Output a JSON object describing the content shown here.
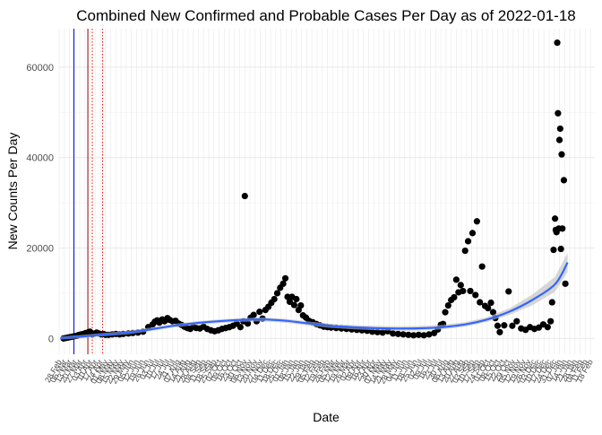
{
  "chart_data": {
    "type": "scatter",
    "title": "Combined New Confirmed and Probable Cases Per Day as of 2022-01-18",
    "xlabel": "Date",
    "ylabel": "New Counts Per Day",
    "x_domain": [
      "2020-02-28",
      "2022-02-24"
    ],
    "ylim": [
      -3500,
      68500
    ],
    "y_ticks": [
      0,
      20000,
      40000,
      60000
    ],
    "y_tick_labels": [
      "0",
      "20000",
      "40000",
      "60000"
    ],
    "grid": true,
    "vertical_lines": [
      {
        "date": "2020-03-19",
        "color": "#0000ff",
        "style": "solid"
      },
      {
        "date": "2020-04-07",
        "color": "#8b0000",
        "style": "solid"
      },
      {
        "date": "2020-04-13",
        "color": "#ff0000",
        "style": "dotted"
      },
      {
        "date": "2020-04-27",
        "color": "#ff0000",
        "style": "dotted"
      }
    ],
    "smooth_color": "#3366ff",
    "smooth_band_color": "#bdbdbd",
    "smooth": [
      [
        "2020-03-01",
        100
      ],
      [
        "2020-04-01",
        450
      ],
      [
        "2020-05-01",
        900
      ],
      [
        "2020-06-01",
        1300
      ],
      [
        "2020-07-01",
        2000
      ],
      [
        "2020-08-01",
        2800
      ],
      [
        "2020-09-01",
        3400
      ],
      [
        "2020-10-01",
        3800
      ],
      [
        "2020-11-01",
        4100
      ],
      [
        "2020-12-01",
        4200
      ],
      [
        "2021-01-01",
        3900
      ],
      [
        "2021-02-01",
        3300
      ],
      [
        "2021-03-01",
        2800
      ],
      [
        "2021-04-01",
        2500
      ],
      [
        "2021-05-01",
        2300
      ],
      [
        "2021-06-01",
        2200
      ],
      [
        "2021-07-01",
        2250
      ],
      [
        "2021-08-01",
        2500
      ],
      [
        "2021-09-01",
        3100
      ],
      [
        "2021-10-01",
        4200
      ],
      [
        "2021-11-01",
        6000
      ],
      [
        "2021-12-01",
        8500
      ],
      [
        "2022-01-01",
        12000
      ],
      [
        "2022-01-18",
        16800
      ]
    ],
    "points": [
      [
        "2020-03-05",
        0
      ],
      [
        "2020-03-08",
        100
      ],
      [
        "2020-03-11",
        200
      ],
      [
        "2020-03-14",
        300
      ],
      [
        "2020-03-17",
        400
      ],
      [
        "2020-03-20",
        500
      ],
      [
        "2020-03-23",
        600
      ],
      [
        "2020-03-26",
        800
      ],
      [
        "2020-03-29",
        900
      ],
      [
        "2020-04-01",
        1000
      ],
      [
        "2020-04-04",
        1200
      ],
      [
        "2020-04-08",
        1400
      ],
      [
        "2020-04-10",
        1500
      ],
      [
        "2020-04-13",
        900
      ],
      [
        "2020-04-16",
        1100
      ],
      [
        "2020-04-19",
        1300
      ],
      [
        "2020-04-22",
        1100
      ],
      [
        "2020-04-25",
        900
      ],
      [
        "2020-04-28",
        1000
      ],
      [
        "2020-05-01",
        800
      ],
      [
        "2020-05-05",
        800
      ],
      [
        "2020-05-10",
        900
      ],
      [
        "2020-05-15",
        1000
      ],
      [
        "2020-05-20",
        900
      ],
      [
        "2020-05-25",
        1000
      ],
      [
        "2020-06-01",
        1100
      ],
      [
        "2020-06-07",
        1200
      ],
      [
        "2020-06-14",
        1300
      ],
      [
        "2020-06-21",
        1500
      ],
      [
        "2020-06-28",
        2500
      ],
      [
        "2020-07-04",
        3100
      ],
      [
        "2020-07-07",
        3700
      ],
      [
        "2020-07-10",
        4000
      ],
      [
        "2020-07-13",
        3500
      ],
      [
        "2020-07-17",
        4200
      ],
      [
        "2020-07-20",
        3800
      ],
      [
        "2020-07-24",
        4500
      ],
      [
        "2020-07-27",
        4100
      ],
      [
        "2020-07-31",
        3800
      ],
      [
        "2020-08-04",
        3900
      ],
      [
        "2020-08-08",
        3300
      ],
      [
        "2020-08-12",
        3000
      ],
      [
        "2020-08-16",
        2600
      ],
      [
        "2020-08-20",
        2300
      ],
      [
        "2020-08-24",
        2100
      ],
      [
        "2020-08-28",
        2600
      ],
      [
        "2020-09-01",
        2300
      ],
      [
        "2020-09-06",
        2200
      ],
      [
        "2020-09-11",
        2600
      ],
      [
        "2020-09-16",
        2100
      ],
      [
        "2020-09-21",
        1800
      ],
      [
        "2020-09-26",
        1600
      ],
      [
        "2020-10-01",
        1800
      ],
      [
        "2020-10-06",
        2100
      ],
      [
        "2020-10-11",
        2300
      ],
      [
        "2020-10-16",
        2500
      ],
      [
        "2020-10-21",
        2800
      ],
      [
        "2020-10-26",
        3300
      ],
      [
        "2020-10-31",
        2500
      ],
      [
        "2020-11-04",
        3800
      ],
      [
        "2020-11-06",
        31500
      ],
      [
        "2020-11-10",
        3300
      ],
      [
        "2020-11-14",
        4600
      ],
      [
        "2020-11-18",
        5200
      ],
      [
        "2020-11-22",
        3800
      ],
      [
        "2020-11-26",
        5900
      ],
      [
        "2020-11-30",
        4400
      ],
      [
        "2020-12-04",
        6300
      ],
      [
        "2020-12-08",
        7000
      ],
      [
        "2020-12-12",
        7900
      ],
      [
        "2020-12-16",
        8700
      ],
      [
        "2020-12-20",
        10000
      ],
      [
        "2020-12-24",
        11200
      ],
      [
        "2020-12-28",
        12100
      ],
      [
        "2020-12-31",
        13300
      ],
      [
        "2021-01-03",
        9200
      ],
      [
        "2021-01-06",
        8100
      ],
      [
        "2021-01-09",
        9200
      ],
      [
        "2021-01-12",
        7400
      ],
      [
        "2021-01-15",
        8700
      ],
      [
        "2021-01-18",
        6300
      ],
      [
        "2021-01-21",
        7300
      ],
      [
        "2021-01-24",
        5100
      ],
      [
        "2021-01-28",
        4600
      ],
      [
        "2021-02-01",
        3900
      ],
      [
        "2021-02-06",
        3600
      ],
      [
        "2021-02-11",
        3200
      ],
      [
        "2021-02-16",
        2900
      ],
      [
        "2021-02-21",
        2600
      ],
      [
        "2021-02-26",
        2500
      ],
      [
        "2021-03-03",
        2400
      ],
      [
        "2021-03-10",
        2300
      ],
      [
        "2021-03-17",
        2200
      ],
      [
        "2021-03-24",
        2100
      ],
      [
        "2021-03-31",
        2000
      ],
      [
        "2021-04-07",
        1900
      ],
      [
        "2021-04-14",
        1800
      ],
      [
        "2021-04-21",
        1700
      ],
      [
        "2021-04-28",
        1500
      ],
      [
        "2021-05-05",
        1400
      ],
      [
        "2021-05-12",
        1300
      ],
      [
        "2021-05-19",
        1600
      ],
      [
        "2021-05-26",
        1100
      ],
      [
        "2021-06-02",
        1000
      ],
      [
        "2021-06-09",
        900
      ],
      [
        "2021-06-16",
        800
      ],
      [
        "2021-06-23",
        700
      ],
      [
        "2021-06-30",
        800
      ],
      [
        "2021-07-07",
        700
      ],
      [
        "2021-07-14",
        900
      ],
      [
        "2021-07-21",
        1200
      ],
      [
        "2021-07-26",
        2000
      ],
      [
        "2021-07-30",
        3000
      ],
      [
        "2021-08-02",
        3200
      ],
      [
        "2021-08-05",
        5800
      ],
      [
        "2021-08-09",
        7300
      ],
      [
        "2021-08-13",
        8500
      ],
      [
        "2021-08-17",
        9100
      ],
      [
        "2021-08-20",
        13000
      ],
      [
        "2021-08-23",
        10200
      ],
      [
        "2021-08-26",
        11800
      ],
      [
        "2021-08-29",
        10500
      ],
      [
        "2021-09-01",
        19400
      ],
      [
        "2021-09-05",
        21500
      ],
      [
        "2021-09-08",
        10500
      ],
      [
        "2021-09-11",
        23300
      ],
      [
        "2021-09-15",
        9600
      ],
      [
        "2021-09-17",
        25900
      ],
      [
        "2021-09-21",
        8000
      ],
      [
        "2021-09-24",
        15900
      ],
      [
        "2021-09-28",
        7200
      ],
      [
        "2021-10-02",
        6700
      ],
      [
        "2021-10-06",
        7900
      ],
      [
        "2021-10-09",
        5800
      ],
      [
        "2021-10-12",
        4500
      ],
      [
        "2021-10-15",
        2800
      ],
      [
        "2021-10-18",
        1400
      ],
      [
        "2021-10-24",
        2900
      ],
      [
        "2021-10-30",
        10400
      ],
      [
        "2021-11-04",
        2800
      ],
      [
        "2021-11-10",
        3800
      ],
      [
        "2021-11-16",
        2200
      ],
      [
        "2021-11-22",
        1900
      ],
      [
        "2021-11-28",
        2500
      ],
      [
        "2021-12-04",
        2100
      ],
      [
        "2021-12-10",
        2400
      ],
      [
        "2021-12-16",
        3100
      ],
      [
        "2021-12-22",
        2500
      ],
      [
        "2021-12-26",
        3800
      ],
      [
        "2021-12-28",
        8000
      ],
      [
        "2021-12-30",
        19600
      ],
      [
        "2022-01-01",
        26500
      ],
      [
        "2022-01-02",
        24000
      ],
      [
        "2022-01-03",
        23500
      ],
      [
        "2022-01-04",
        65400
      ],
      [
        "2022-01-05",
        49800
      ],
      [
        "2022-01-06",
        24300
      ],
      [
        "2022-01-07",
        43900
      ],
      [
        "2022-01-08",
        46400
      ],
      [
        "2022-01-09",
        19800
      ],
      [
        "2022-01-10",
        40700
      ],
      [
        "2022-01-11",
        24300
      ],
      [
        "2022-01-13",
        35000
      ],
      [
        "2022-01-15",
        12100
      ]
    ]
  }
}
